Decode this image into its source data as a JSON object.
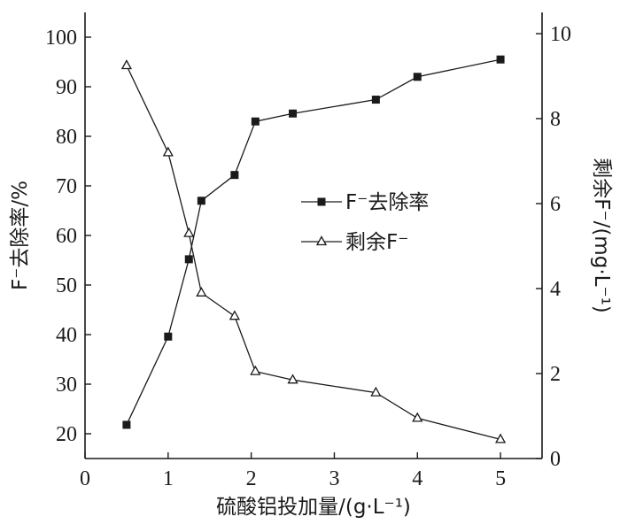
{
  "chart_data": {
    "type": "line",
    "xlabel": "硫酸铝投加量/(g·L⁻¹)",
    "ylabel_left": "F⁻去除率/%",
    "ylabel_right": "剩余F⁻/(mg·L⁻¹)",
    "xlim": [
      0,
      5.5
    ],
    "ylim_left": [
      15,
      105
    ],
    "ylim_right": [
      0,
      10.5
    ],
    "x_ticks": [
      "0",
      "1",
      "2",
      "3",
      "4",
      "5"
    ],
    "y_left_ticks": [
      "20",
      "30",
      "40",
      "50",
      "60",
      "70",
      "80",
      "90",
      "100"
    ],
    "y_right_ticks": [
      "0",
      "2",
      "4",
      "6",
      "8",
      "10"
    ],
    "grid": false,
    "legend_position": "center-right",
    "series": [
      {
        "name": "F⁻去除率",
        "axis": "left",
        "marker": "filled-square",
        "color": "#1a1a1a",
        "x": [
          0.5,
          1.0,
          1.25,
          1.4,
          1.8,
          2.05,
          2.5,
          3.5,
          4.0,
          5.0
        ],
        "values": [
          21.8,
          39.6,
          55.2,
          67.0,
          72.2,
          83.0,
          84.6,
          87.4,
          92.0,
          95.5
        ]
      },
      {
        "name": "剩余F⁻",
        "axis": "right",
        "marker": "open-triangle",
        "color": "#1a1a1a",
        "x": [
          0.5,
          1.0,
          1.25,
          1.4,
          1.8,
          2.05,
          2.5,
          3.5,
          4.0,
          5.0
        ],
        "values": [
          9.25,
          7.2,
          5.3,
          3.9,
          3.35,
          2.05,
          1.85,
          1.55,
          0.95,
          0.45
        ]
      }
    ]
  }
}
